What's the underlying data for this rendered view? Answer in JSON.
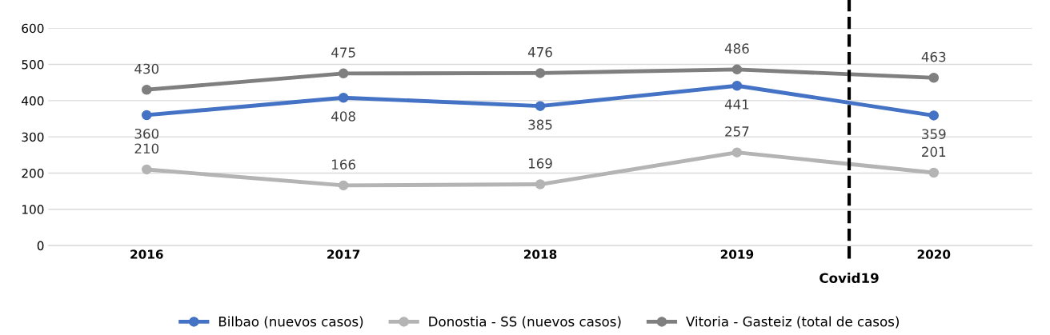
{
  "chart_data": {
    "type": "line",
    "x": [
      2016,
      2017,
      2018,
      2019,
      2020
    ],
    "series": [
      {
        "name": "Bilbao (nuevos casos)",
        "color": "#4472c4",
        "values": [
          360,
          408,
          385,
          441,
          359
        ]
      },
      {
        "name": "Donostia - SS (nuevos casos)",
        "color": "#b4b4b4",
        "values": [
          210,
          166,
          169,
          257,
          201
        ]
      },
      {
        "name": "Vitoria - Gasteiz (total de casos)",
        "color": "#7f7f7f",
        "values": [
          430,
          475,
          476,
          486,
          463
        ]
      }
    ],
    "xlim": [
      2015.5,
      2020.5
    ],
    "xticks": [
      2016,
      2017,
      2018,
      2019,
      2020
    ],
    "ylim": [
      0,
      600
    ],
    "yticks": [
      0,
      100,
      200,
      300,
      400,
      500,
      600
    ],
    "grid": "y",
    "legend": "bottom",
    "marker": "circle",
    "line_style": "solid",
    "data_labels": true,
    "ref_lines": [
      {
        "axis": "x",
        "value": 2019.57,
        "label": "Covid19",
        "color": "#000000",
        "line_style": "dashed"
      }
    ]
  }
}
